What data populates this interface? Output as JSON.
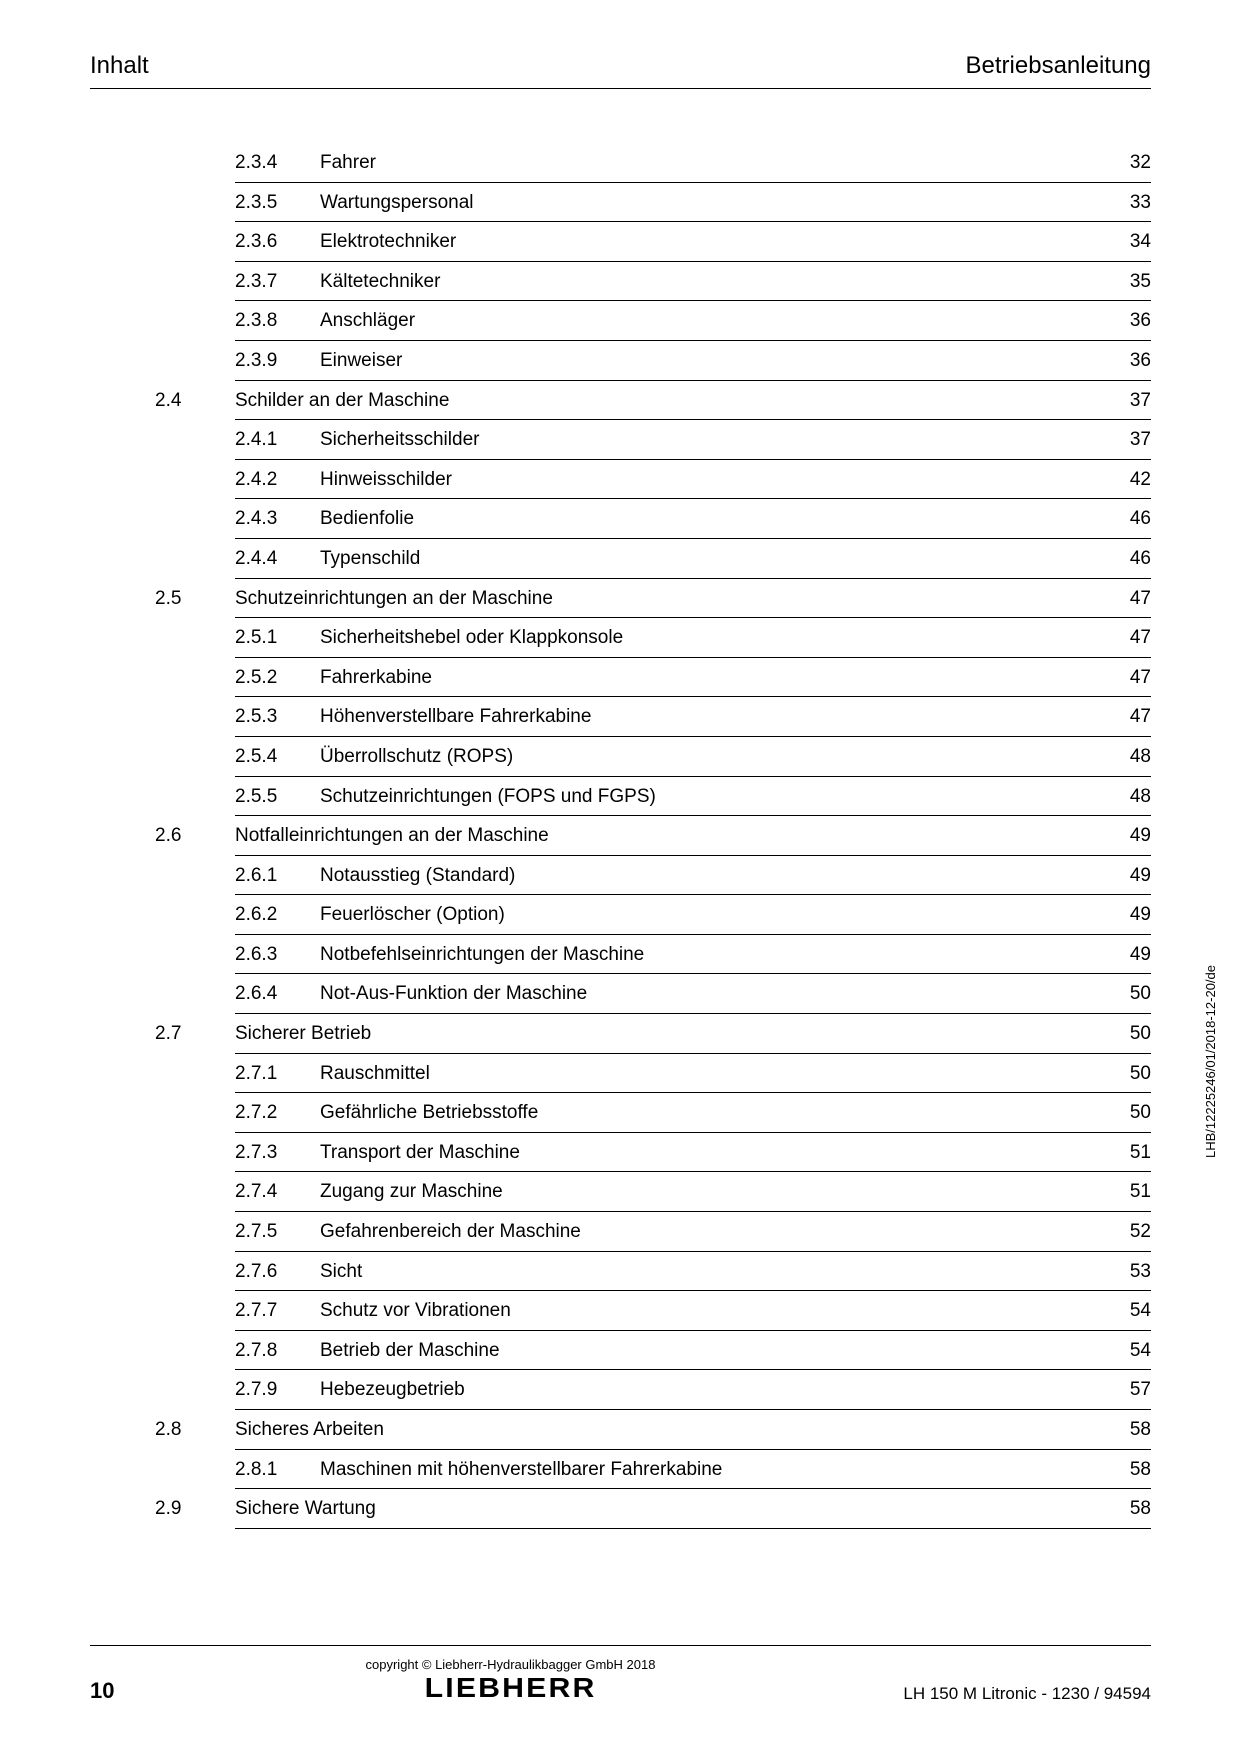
{
  "header": {
    "left": "Inhalt",
    "right": "Betriebsanleitung"
  },
  "toc": [
    {
      "sec": "",
      "sub": "2.3.4",
      "title": "Fahrer",
      "page": "32"
    },
    {
      "sec": "",
      "sub": "2.3.5",
      "title": "Wartungspersonal",
      "page": "33"
    },
    {
      "sec": "",
      "sub": "2.3.6",
      "title": "Elektrotechniker",
      "page": "34"
    },
    {
      "sec": "",
      "sub": "2.3.7",
      "title": "Kältetechniker",
      "page": "35"
    },
    {
      "sec": "",
      "sub": "2.3.8",
      "title": "Anschläger",
      "page": "36"
    },
    {
      "sec": "",
      "sub": "2.3.9",
      "title": "Einweiser",
      "page": "36"
    },
    {
      "sec": "2.4",
      "sub": "",
      "title": "Schilder an der Maschine",
      "page": "37"
    },
    {
      "sec": "",
      "sub": "2.4.1",
      "title": "Sicherheitsschilder",
      "page": "37"
    },
    {
      "sec": "",
      "sub": "2.4.2",
      "title": "Hinweisschilder",
      "page": "42"
    },
    {
      "sec": "",
      "sub": "2.4.3",
      "title": "Bedienfolie",
      "page": "46"
    },
    {
      "sec": "",
      "sub": "2.4.4",
      "title": "Typenschild",
      "page": "46"
    },
    {
      "sec": "2.5",
      "sub": "",
      "title": "Schutzeinrichtungen an der Maschine",
      "page": "47"
    },
    {
      "sec": "",
      "sub": "2.5.1",
      "title": "Sicherheitshebel oder Klappkonsole",
      "page": "47"
    },
    {
      "sec": "",
      "sub": "2.5.2",
      "title": "Fahrerkabine",
      "page": "47"
    },
    {
      "sec": "",
      "sub": "2.5.3",
      "title": "Höhenverstellbare Fahrerkabine",
      "page": "47"
    },
    {
      "sec": "",
      "sub": "2.5.4",
      "title": "Überrollschutz (ROPS)",
      "page": "48"
    },
    {
      "sec": "",
      "sub": "2.5.5",
      "title": "Schutzeinrichtungen (FOPS und FGPS)",
      "page": "48"
    },
    {
      "sec": "2.6",
      "sub": "",
      "title": "Notfalleinrichtungen an der Maschine",
      "page": "49"
    },
    {
      "sec": "",
      "sub": "2.6.1",
      "title": "Notausstieg (Standard)",
      "page": "49"
    },
    {
      "sec": "",
      "sub": "2.6.2",
      "title": "Feuerlöscher (Option)",
      "page": "49"
    },
    {
      "sec": "",
      "sub": "2.6.3",
      "title": "Notbefehlseinrichtungen der Maschine",
      "page": "49"
    },
    {
      "sec": "",
      "sub": "2.6.4",
      "title": "Not-Aus-Funktion der Maschine",
      "page": "50"
    },
    {
      "sec": "2.7",
      "sub": "",
      "title": "Sicherer Betrieb",
      "page": "50"
    },
    {
      "sec": "",
      "sub": "2.7.1",
      "title": "Rauschmittel",
      "page": "50"
    },
    {
      "sec": "",
      "sub": "2.7.2",
      "title": "Gefährliche Betriebsstoffe",
      "page": "50"
    },
    {
      "sec": "",
      "sub": "2.7.3",
      "title": "Transport der Maschine",
      "page": "51"
    },
    {
      "sec": "",
      "sub": "2.7.4",
      "title": "Zugang zur Maschine",
      "page": "51"
    },
    {
      "sec": "",
      "sub": "2.7.5",
      "title": "Gefahrenbereich der Maschine",
      "page": "52"
    },
    {
      "sec": "",
      "sub": "2.7.6",
      "title": "Sicht",
      "page": "53"
    },
    {
      "sec": "",
      "sub": "2.7.7",
      "title": "Schutz vor Vibrationen",
      "page": "54"
    },
    {
      "sec": "",
      "sub": "2.7.8",
      "title": "Betrieb der Maschine",
      "page": "54"
    },
    {
      "sec": "",
      "sub": "2.7.9",
      "title": "Hebezeugbetrieb",
      "page": "57"
    },
    {
      "sec": "2.8",
      "sub": "",
      "title": "Sicheres Arbeiten",
      "page": "58"
    },
    {
      "sec": "",
      "sub": "2.8.1",
      "title": "Maschinen mit höhenverstellbarer Fahrerkabine",
      "page": "58"
    },
    {
      "sec": "2.9",
      "sub": "",
      "title": "Sichere Wartung",
      "page": "58"
    }
  ],
  "side_text": "LHB/12225246/01/2018-12-20/de",
  "footer": {
    "page_number": "10",
    "copyright": "copyright © Liebherr-Hydraulikbagger GmbH 2018",
    "logo": "LIEBHERR",
    "right": "LH 150 M Litronic  - 1230 / 94594"
  }
}
